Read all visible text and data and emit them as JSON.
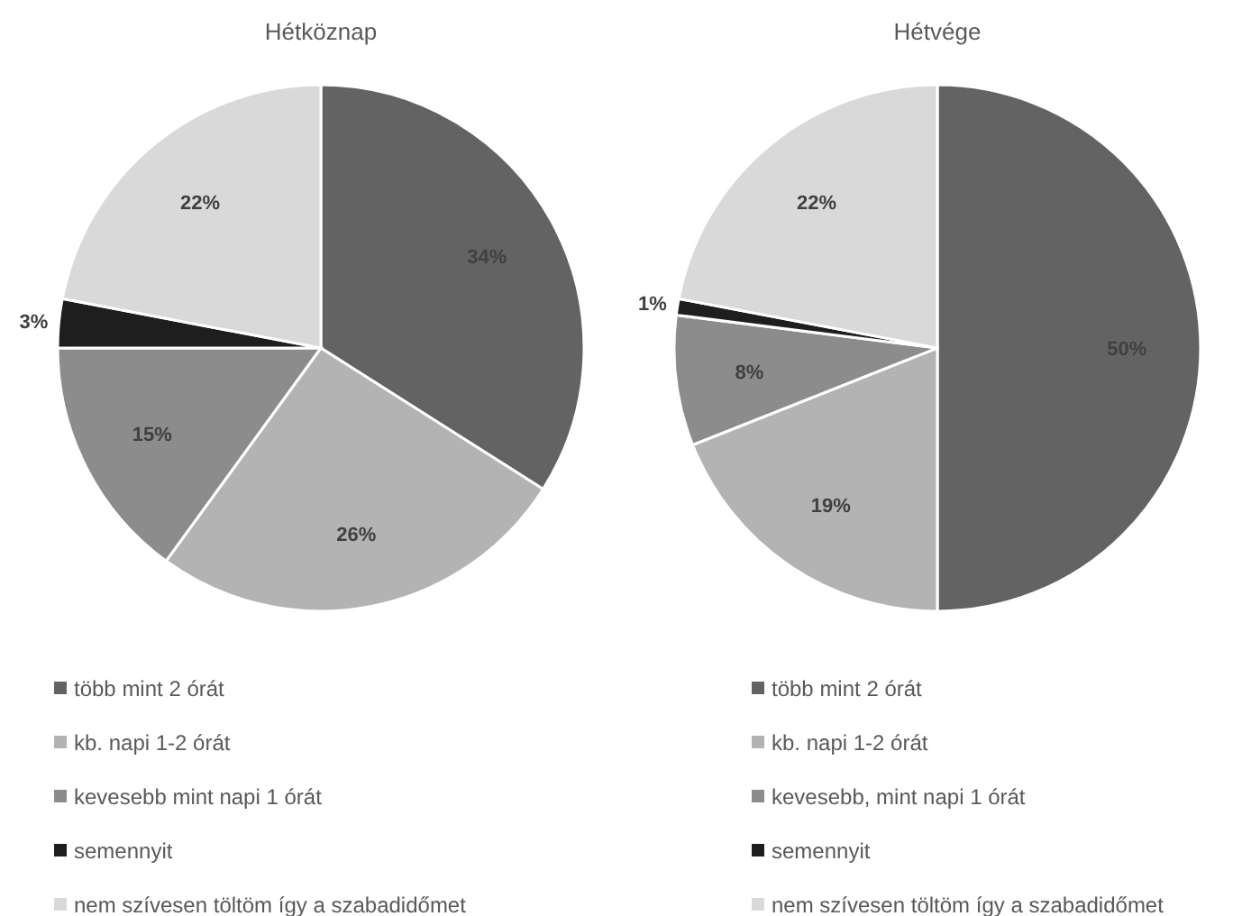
{
  "chart_data": [
    {
      "type": "pie",
      "title": "Hétköznap",
      "categories": [
        "több mint 2 órát",
        "kb. napi 1-2 órát",
        "kevesebb mint napi 1 órát",
        "semennyit",
        "nem szívesen töltöm így a szabadidőmet"
      ],
      "values": [
        34,
        26,
        15,
        3,
        22
      ],
      "value_labels": [
        "34%",
        "26%",
        "15%",
        "3%",
        "22%"
      ],
      "colors": [
        "#636363",
        "#b3b3b3",
        "#8c8c8c",
        "#1e1e1e",
        "#d9d9d9"
      ],
      "legend": "bottom"
    },
    {
      "type": "pie",
      "title": "Hétvége",
      "categories": [
        "több mint 2 órát",
        "kb. napi 1-2 órát",
        "kevesebb, mint napi 1 órát",
        "semennyit",
        "nem szívesen töltöm így a szabadidőmet"
      ],
      "values": [
        50,
        19,
        8,
        1,
        22
      ],
      "value_labels": [
        "50%",
        "19%",
        "8%",
        "1%",
        "22%"
      ],
      "colors": [
        "#636363",
        "#b3b3b3",
        "#8c8c8c",
        "#1e1e1e",
        "#d9d9d9"
      ],
      "legend": "bottom"
    }
  ]
}
